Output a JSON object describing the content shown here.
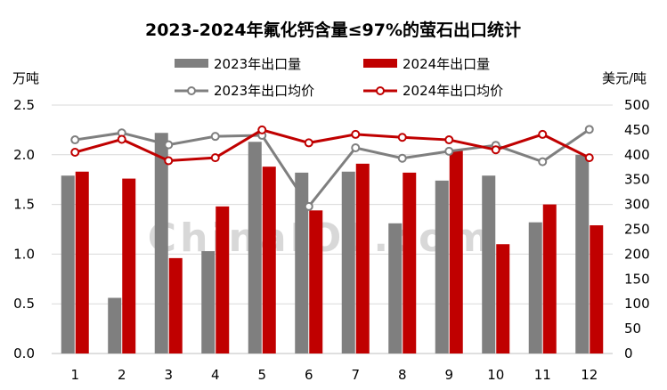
{
  "chart_data": {
    "type": "bar",
    "title": "2023-2024年氟化钙含量≤97%的萤石出口统计",
    "ylabel_left": "万吨",
    "ylabel_right": "美元/吨",
    "watermark": "ChinaIOL.com",
    "categories": [
      "1",
      "2",
      "3",
      "4",
      "5",
      "6",
      "7",
      "8",
      "9",
      "10",
      "11",
      "12"
    ],
    "ylim_left": [
      0,
      2.5
    ],
    "yticks_left": [
      "0.0",
      "0.5",
      "1.0",
      "1.5",
      "2.0",
      "2.5"
    ],
    "ylim_right": [
      0,
      500
    ],
    "yticks_right": [
      "0",
      "50",
      "100",
      "150",
      "200",
      "250",
      "300",
      "350",
      "400",
      "450",
      "500"
    ],
    "grid": true,
    "legend_position": "top",
    "bar_series": [
      {
        "name": "2023年出口量",
        "color": "#7f7f7f",
        "values": [
          1.79,
          0.56,
          2.22,
          1.03,
          2.13,
          1.82,
          1.83,
          1.31,
          1.74,
          1.79,
          1.32,
          2.0
        ]
      },
      {
        "name": "2024年出口量",
        "color": "#c00000",
        "values": [
          1.83,
          1.76,
          0.96,
          1.48,
          1.88,
          1.44,
          1.91,
          1.82,
          2.04,
          1.1,
          1.5,
          1.29
        ]
      }
    ],
    "line_series": [
      {
        "name": "2023年出口均价",
        "color": "#7f7f7f",
        "values": [
          430,
          444,
          420,
          437,
          439,
          296,
          414,
          393,
          407,
          419,
          386,
          451
        ]
      },
      {
        "name": "2024年出口均价",
        "color": "#c00000",
        "values": [
          405,
          431,
          388,
          394,
          450,
          424,
          441,
          435,
          430,
          410,
          441,
          394
        ]
      }
    ]
  }
}
